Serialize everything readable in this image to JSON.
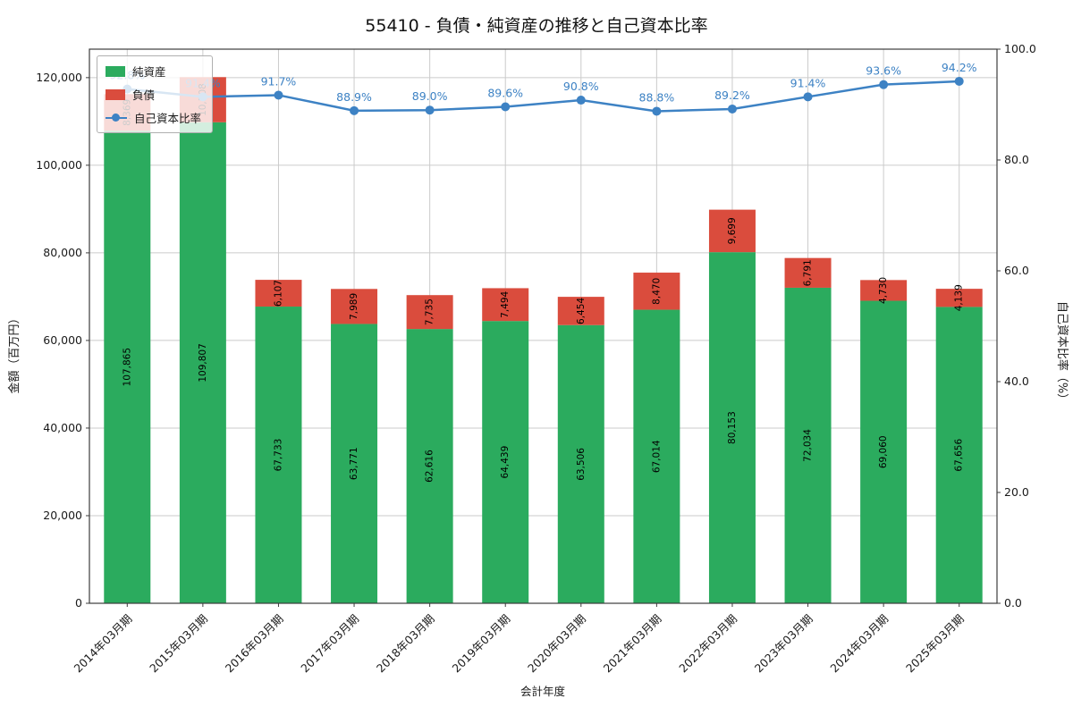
{
  "title": "55410 - 負債・純資産の推移と自己資本比率",
  "chart_data": {
    "type": "bar",
    "stacked": true,
    "title": "55410 - 負債・純資産の推移と自己資本比率",
    "xlabel": "会計年度",
    "ylabel_left": "金額（百万円）",
    "ylabel_right": "自己資本比率（%）",
    "categories": [
      "2014年03月期",
      "2015年03月期",
      "2016年03月期",
      "2017年03月期",
      "2018年03月期",
      "2019年03月期",
      "2020年03月期",
      "2021年03月期",
      "2022年03月期",
      "2023年03月期",
      "2024年03月期",
      "2025年03月期"
    ],
    "series": [
      {
        "name": "純資産",
        "type": "bar",
        "color": "#2bab5e",
        "values": [
          107865,
          109807,
          67733,
          63771,
          62616,
          64439,
          63506,
          67014,
          80153,
          72034,
          69060,
          67656
        ]
      },
      {
        "name": "負債",
        "type": "bar",
        "color": "#da4c3d",
        "values": [
          8369,
          10308,
          6107,
          7989,
          7735,
          7494,
          6454,
          8470,
          9699,
          6791,
          4730,
          4139
        ]
      },
      {
        "name": "自己資本比率",
        "type": "line",
        "axis": "right",
        "color": "#3d82c4",
        "values": [
          92.8,
          91.4,
          91.7,
          88.9,
          89.0,
          89.6,
          90.8,
          88.8,
          89.2,
          91.4,
          93.6,
          94.2
        ]
      }
    ],
    "ylim_left": [
      0,
      126500
    ],
    "ylim_right": [
      0,
      100
    ],
    "yticks_left": [
      0,
      20000,
      40000,
      60000,
      80000,
      100000,
      120000
    ],
    "yticks_right": [
      0,
      20,
      40,
      60,
      80,
      100
    ],
    "grid": true,
    "legend_position": "upper left"
  }
}
